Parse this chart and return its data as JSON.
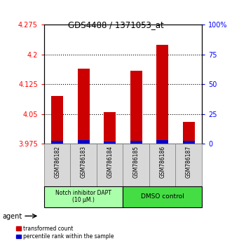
{
  "title": "GDS4488 / 1371053_at",
  "samples": [
    "GSM786182",
    "GSM786183",
    "GSM786184",
    "GSM786185",
    "GSM786186",
    "GSM786187"
  ],
  "red_values": [
    4.095,
    4.165,
    4.055,
    4.16,
    4.225,
    4.03
  ],
  "blue_values": [
    3.982,
    3.984,
    3.981,
    3.983,
    3.984,
    3.982
  ],
  "y_min": 3.975,
  "y_max": 4.275,
  "y_ticks_left": [
    3.975,
    4.05,
    4.125,
    4.2,
    4.275
  ],
  "y_ticks_right_vals": [
    0,
    25,
    50,
    75,
    100
  ],
  "y_ticks_right_labels": [
    "0",
    "25",
    "50",
    "75",
    "100%"
  ],
  "bar_width": 0.45,
  "red_color": "#cc0000",
  "blue_color": "#0000cc",
  "group1_label": "Notch inhibitor DAPT\n(10 μM.)",
  "group2_label": "DMSO control",
  "group1_color": "#aaffaa",
  "group2_color": "#44dd44",
  "legend_red": "transformed count",
  "legend_blue": "percentile rank within the sample",
  "agent_label": "agent",
  "bg_color": "#ffffff"
}
